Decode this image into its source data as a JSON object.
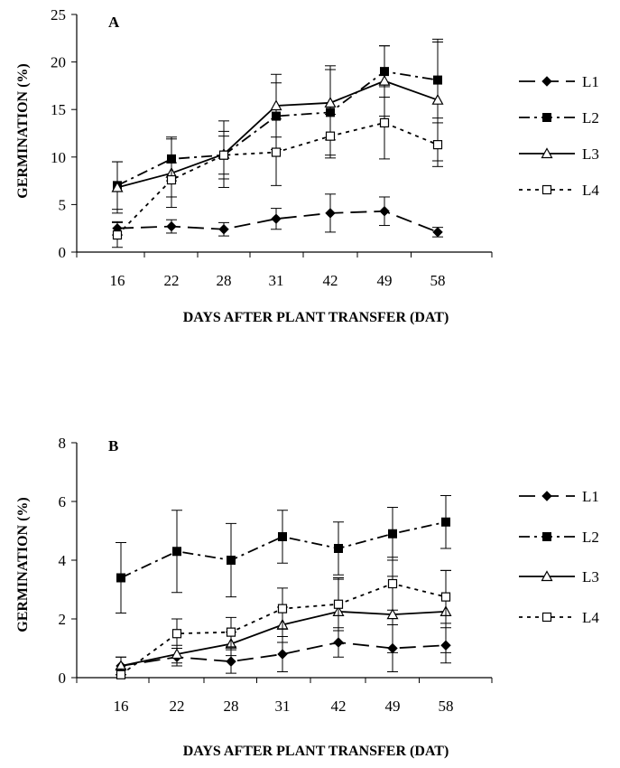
{
  "chart_data": [
    {
      "type": "line",
      "panel_label": "A",
      "xlabel": "DAYS AFTER PLANT TRANSFER (DAT)",
      "ylabel": "GERMINATION (%)",
      "categories": [
        "16",
        "22",
        "28",
        "31",
        "42",
        "49",
        "58"
      ],
      "ylim": [
        0,
        25
      ],
      "yticks": [
        0,
        5,
        10,
        15,
        20,
        25
      ],
      "grid": false,
      "legend_position": "right",
      "series": [
        {
          "name": "L1",
          "style": "long-dash",
          "marker": "diamond-filled",
          "values": [
            2.5,
            2.7,
            2.4,
            3.5,
            4.1,
            4.3,
            2.1
          ],
          "errors": [
            0.7,
            0.7,
            0.7,
            1.1,
            2.0,
            1.5,
            0.5
          ]
        },
        {
          "name": "L2",
          "style": "dash-dot",
          "marker": "square-filled",
          "values": [
            7.0,
            9.8,
            10.2,
            14.3,
            14.7,
            19.0,
            18.1
          ],
          "errors": [
            2.5,
            2.3,
            2.5,
            3.5,
            4.5,
            2.7,
            4.0
          ]
        },
        {
          "name": "L3",
          "style": "solid",
          "marker": "triangle-open",
          "values": [
            6.8,
            8.3,
            10.3,
            15.4,
            15.7,
            18.0,
            16.0
          ],
          "errors": [
            2.7,
            3.6,
            3.5,
            3.3,
            3.9,
            3.7,
            6.4
          ]
        },
        {
          "name": "L4",
          "style": "dotted",
          "marker": "square-open",
          "values": [
            1.8,
            7.6,
            10.2,
            10.5,
            12.2,
            13.6,
            11.3
          ],
          "errors": [
            1.3,
            1.8,
            2.0,
            3.5,
            2.3,
            3.8,
            2.3
          ]
        }
      ]
    },
    {
      "type": "line",
      "panel_label": "B",
      "xlabel": "DAYS AFTER PLANT TRANSFER (DAT)",
      "ylabel": "GERMINATION (%)",
      "categories": [
        "16",
        "22",
        "28",
        "31",
        "42",
        "49",
        "58"
      ],
      "ylim": [
        0,
        8
      ],
      "yticks": [
        0,
        2,
        4,
        6,
        8
      ],
      "grid": false,
      "legend_position": "right",
      "series": [
        {
          "name": "L1",
          "style": "long-dash",
          "marker": "diamond-filled",
          "values": [
            0.4,
            0.7,
            0.55,
            0.8,
            1.2,
            1.0,
            1.1
          ],
          "errors": [
            0.3,
            0.3,
            0.4,
            0.6,
            0.5,
            0.8,
            0.6
          ]
        },
        {
          "name": "L2",
          "style": "dash-dot",
          "marker": "square-filled",
          "values": [
            3.4,
            4.3,
            4.0,
            4.8,
            4.4,
            4.9,
            5.3
          ],
          "errors": [
            1.2,
            1.4,
            1.25,
            0.9,
            0.9,
            0.9,
            0.9
          ]
        },
        {
          "name": "L3",
          "style": "solid",
          "marker": "triangle-open",
          "values": [
            0.4,
            0.8,
            1.15,
            1.8,
            2.25,
            2.15,
            2.25
          ],
          "errors": [
            0.3,
            0.3,
            0.4,
            0.6,
            1.1,
            1.3,
            1.4
          ]
        },
        {
          "name": "L4",
          "style": "dotted",
          "marker": "square-open",
          "values": [
            0.1,
            1.5,
            1.55,
            2.35,
            2.5,
            3.2,
            2.75
          ],
          "errors": [
            0.2,
            0.5,
            0.5,
            0.7,
            0.9,
            0.9,
            0.9
          ]
        }
      ]
    }
  ]
}
